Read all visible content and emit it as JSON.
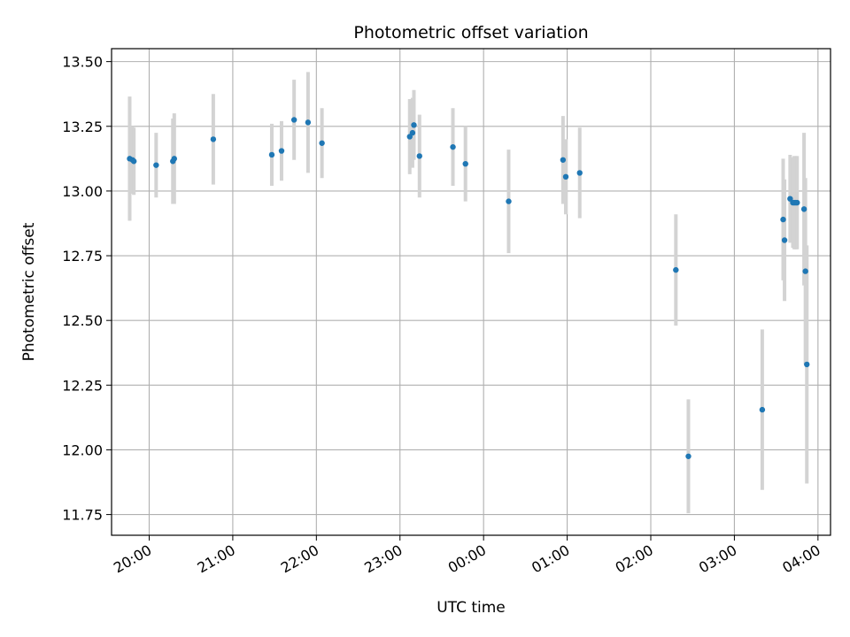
{
  "chart_data": {
    "type": "scatter",
    "title": "Photometric offset variation",
    "xlabel": "UTC time",
    "ylabel": "Photometric offset",
    "x_tick_labels": [
      "20:00",
      "21:00",
      "22:00",
      "23:00",
      "00:00",
      "01:00",
      "02:00",
      "03:00",
      "04:00"
    ],
    "y_tick_labels": [
      "11.75",
      "12.00",
      "12.25",
      "12.50",
      "12.75",
      "13.00",
      "13.25",
      "13.50"
    ],
    "y_ticks": [
      11.75,
      12.0,
      12.25,
      12.5,
      12.75,
      13.0,
      13.25,
      13.5
    ],
    "xlim": [
      "19:33",
      "04:09"
    ],
    "ylim": [
      11.67,
      13.55
    ],
    "grid": true,
    "marker_color": "#1f77b4",
    "errorbar_color": "#d3d3d3",
    "points": [
      {
        "x": "19:46",
        "y": 13.125,
        "err": 0.24
      },
      {
        "x": "19:48",
        "y": 13.12,
        "err": 0.13
      },
      {
        "x": "19:49",
        "y": 13.115,
        "err": 0.13
      },
      {
        "x": "20:05",
        "y": 13.1,
        "err": 0.125
      },
      {
        "x": "20:17",
        "y": 13.115,
        "err": 0.165
      },
      {
        "x": "20:18",
        "y": 13.125,
        "err": 0.175
      },
      {
        "x": "20:46",
        "y": 13.2,
        "err": 0.175
      },
      {
        "x": "21:28",
        "y": 13.14,
        "err": 0.12
      },
      {
        "x": "21:35",
        "y": 13.155,
        "err": 0.115
      },
      {
        "x": "21:44",
        "y": 13.275,
        "err": 0.155
      },
      {
        "x": "21:54",
        "y": 13.265,
        "err": 0.195
      },
      {
        "x": "22:04",
        "y": 13.185,
        "err": 0.135
      },
      {
        "x": "23:07",
        "y": 13.21,
        "err": 0.145
      },
      {
        "x": "23:09",
        "y": 13.225,
        "err": 0.135
      },
      {
        "x": "23:10",
        "y": 13.255,
        "err": 0.135
      },
      {
        "x": "23:14",
        "y": 13.135,
        "err": 0.16
      },
      {
        "x": "23:38",
        "y": 13.17,
        "err": 0.15
      },
      {
        "x": "23:47",
        "y": 13.105,
        "err": 0.145
      },
      {
        "x": "00:18",
        "y": 12.96,
        "err": 0.2
      },
      {
        "x": "00:57",
        "y": 13.12,
        "err": 0.17
      },
      {
        "x": "00:59",
        "y": 13.055,
        "err": 0.145
      },
      {
        "x": "01:09",
        "y": 13.07,
        "err": 0.175
      },
      {
        "x": "02:18",
        "y": 12.695,
        "err": 0.215
      },
      {
        "x": "02:27",
        "y": 11.975,
        "err": 0.22
      },
      {
        "x": "03:20",
        "y": 12.155,
        "err": 0.31
      },
      {
        "x": "03:35",
        "y": 12.89,
        "err": 0.235
      },
      {
        "x": "03:36",
        "y": 12.81,
        "err": 0.235
      },
      {
        "x": "03:40",
        "y": 12.97,
        "err": 0.17
      },
      {
        "x": "03:42",
        "y": 12.955,
        "err": 0.175
      },
      {
        "x": "03:43",
        "y": 12.955,
        "err": 0.18
      },
      {
        "x": "03:44",
        "y": 12.955,
        "err": 0.18
      },
      {
        "x": "03:45",
        "y": 12.955,
        "err": 0.18
      },
      {
        "x": "03:50",
        "y": 12.93,
        "err": 0.295
      },
      {
        "x": "03:51",
        "y": 12.69,
        "err": 0.36
      },
      {
        "x": "03:52",
        "y": 12.33,
        "err": 0.46
      }
    ]
  }
}
